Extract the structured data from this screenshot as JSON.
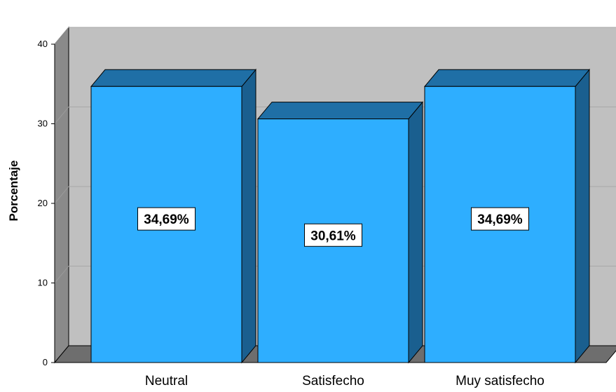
{
  "chart_data": {
    "type": "bar",
    "categories": [
      "Neutral",
      "Satisfecho",
      "Muy satisfecho"
    ],
    "values": [
      34.69,
      30.61,
      34.69
    ],
    "data_labels": [
      "34,69%",
      "30,61%",
      "34,69%"
    ],
    "title": "",
    "xlabel": "",
    "ylabel": "Porcentaje",
    "ylim": [
      0,
      40
    ],
    "yticks": [
      "0",
      "10",
      "20",
      "30",
      "40"
    ],
    "grid": true,
    "legend": "none",
    "three_d": true
  },
  "colors": {
    "bar_front": "#2eaeff",
    "bar_top": "#1f6fa6",
    "bar_side": "#1a5f8f",
    "back_wall": "#c0c0c0",
    "side_wall": "#8a8a8a",
    "floor": "#6e6e6e",
    "gridline": "#a8a8a8"
  }
}
